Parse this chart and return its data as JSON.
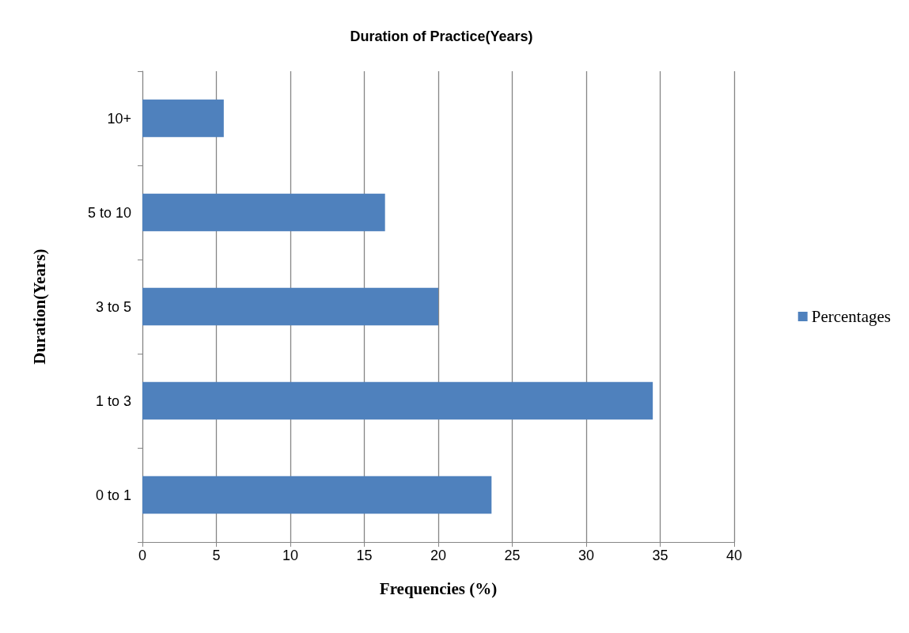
{
  "chart_data": {
    "type": "bar",
    "orientation": "horizontal",
    "title": "Duration of Practice(Years)",
    "xlabel": "Frequencies (%)",
    "ylabel": "Duration(Years)",
    "categories": [
      "10+",
      "5 to 10",
      "3 to 5",
      "1 to 3",
      "0 to 1"
    ],
    "series": [
      {
        "name": "Percentages",
        "color": "#4f81bd",
        "values": [
          5.5,
          16.4,
          20.0,
          34.5,
          23.6
        ]
      }
    ],
    "xlim": [
      0,
      40
    ],
    "xticks": [
      0,
      5,
      10,
      15,
      20,
      25,
      30,
      35,
      40
    ],
    "grid": "x",
    "legend": "right"
  }
}
